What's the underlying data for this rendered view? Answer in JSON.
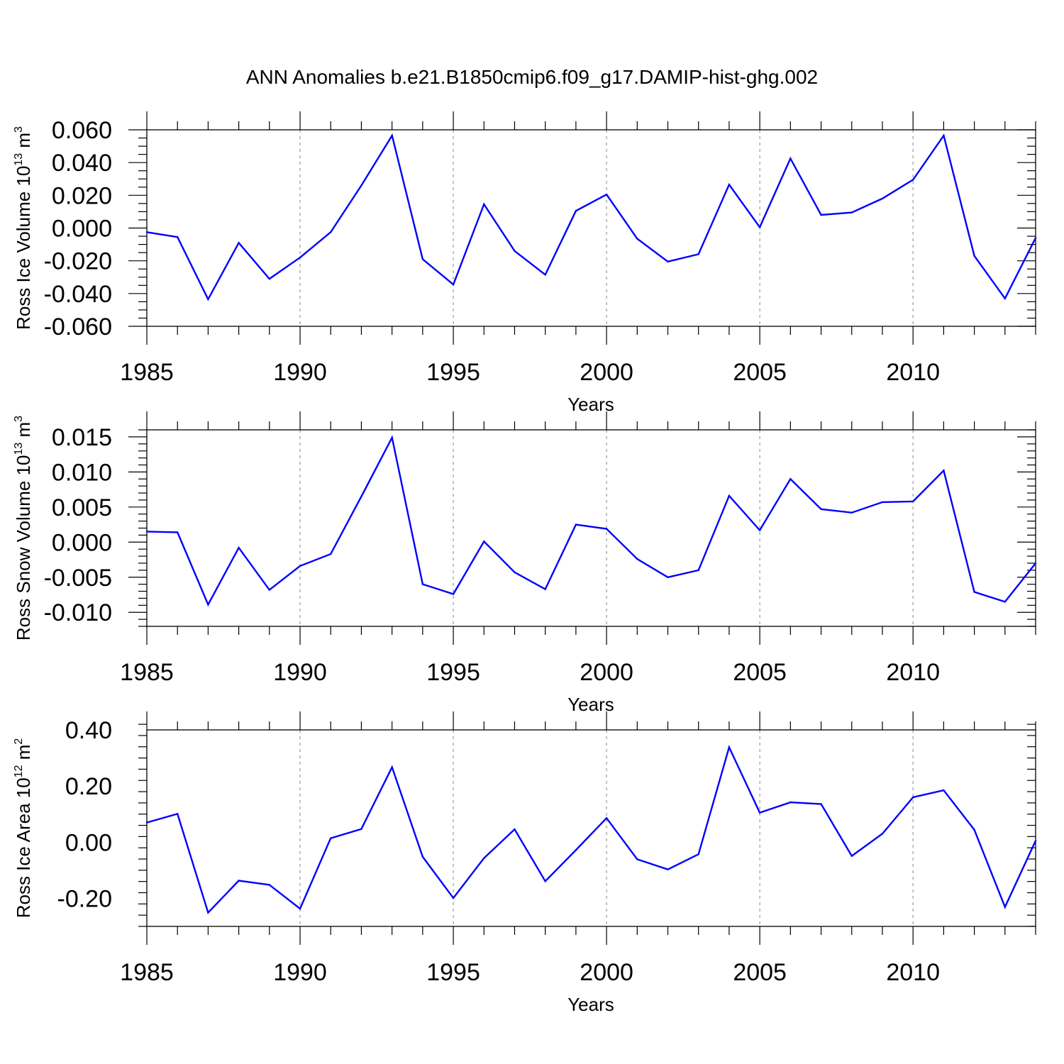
{
  "title": "ANN Anomalies b.e21.B1850cmip6.f09_g17.DAMIP-hist-ghg.002",
  "colors": {
    "line": "#0000ff",
    "axis": "#000000",
    "grid": "#999999"
  },
  "chart_data": [
    {
      "type": "line",
      "ylabel": "Ross Ice Volume",
      "yunit_base": "10",
      "yunit_exp": "13",
      "yunit_suffix": "m",
      "yunit_suffix_exp": "3",
      "xlabel": "Years",
      "xlim": [
        1985,
        2014
      ],
      "ylim": [
        -0.06,
        0.06
      ],
      "xticks": [
        "1985",
        "1990",
        "1995",
        "2000",
        "2005",
        "2010"
      ],
      "yticks": [
        "0.060",
        "0.040",
        "0.020",
        "0.000",
        "-0.020",
        "-0.040",
        "-0.060"
      ],
      "grid": "dashed vertical at major x ticks",
      "x": [
        1985,
        1986,
        1987,
        1988,
        1989,
        1990,
        1991,
        1992,
        1993,
        1994,
        1995,
        1996,
        1997,
        1998,
        1999,
        2000,
        2001,
        2002,
        2003,
        2004,
        2005,
        2006,
        2007,
        2008,
        2009,
        2010,
        2011,
        2012,
        2013,
        2014
      ],
      "values": [
        -0.0025,
        -0.0055,
        -0.0435,
        -0.009,
        -0.031,
        -0.018,
        -0.0025,
        0.026,
        0.0565,
        -0.019,
        -0.0345,
        0.0145,
        -0.014,
        -0.0285,
        0.0105,
        0.0205,
        -0.0065,
        -0.0205,
        -0.016,
        0.0265,
        0.0005,
        0.0425,
        0.008,
        0.0095,
        0.018,
        0.0295,
        0.0565,
        -0.017,
        -0.043,
        -0.006
      ]
    },
    {
      "type": "line",
      "ylabel": "Ross Snow Volume",
      "yunit_base": "10",
      "yunit_exp": "13",
      "yunit_suffix": "m",
      "yunit_suffix_exp": "3",
      "xlabel": "Years",
      "xlim": [
        1985,
        2014
      ],
      "ylim": [
        -0.012,
        0.016
      ],
      "xticks": [
        "1985",
        "1990",
        "1995",
        "2000",
        "2005",
        "2010"
      ],
      "yticks": [
        "0.015",
        "0.010",
        "0.005",
        "0.000",
        "-0.005",
        "-0.010"
      ],
      "grid": "dashed vertical at major x ticks",
      "x": [
        1985,
        1986,
        1987,
        1988,
        1989,
        1990,
        1991,
        1992,
        1993,
        1994,
        1995,
        1996,
        1997,
        1998,
        1999,
        2000,
        2001,
        2002,
        2003,
        2004,
        2005,
        2006,
        2007,
        2008,
        2009,
        2010,
        2011,
        2012,
        2013,
        2014
      ],
      "values": [
        0.0015,
        0.0014,
        -0.0089,
        -0.0008,
        -0.0068,
        -0.0034,
        -0.0017,
        0.0065,
        0.0149,
        -0.006,
        -0.0074,
        0.0001,
        -0.0043,
        -0.0067,
        0.0025,
        0.0019,
        -0.0024,
        -0.005,
        -0.004,
        0.0066,
        0.0017,
        0.009,
        0.0047,
        0.0042,
        0.0057,
        0.0058,
        0.0102,
        -0.0071,
        -0.0085,
        -0.003
      ]
    },
    {
      "type": "line",
      "ylabel": "Ross Ice Area",
      "yunit_base": "10",
      "yunit_exp": "12",
      "yunit_suffix": "m",
      "yunit_suffix_exp": "2",
      "xlabel": "Years",
      "xlim": [
        1985,
        2014
      ],
      "ylim": [
        -0.3,
        0.4
      ],
      "xticks": [
        "1985",
        "1990",
        "1995",
        "2000",
        "2005",
        "2010"
      ],
      "yticks": [
        "0.40",
        "0.20",
        "0.00",
        "-0.20"
      ],
      "grid": "dashed vertical at major x ticks",
      "x": [
        1985,
        1986,
        1987,
        1988,
        1989,
        1990,
        1991,
        1992,
        1993,
        1994,
        1995,
        1996,
        1997,
        1998,
        1999,
        2000,
        2001,
        2002,
        2003,
        2004,
        2005,
        2006,
        2007,
        2008,
        2009,
        2010,
        2011,
        2012,
        2013,
        2014
      ],
      "values": [
        0.07,
        0.101,
        -0.251,
        -0.137,
        -0.152,
        -0.237,
        0.014,
        0.047,
        0.267,
        -0.052,
        -0.199,
        -0.057,
        0.046,
        -0.139,
        -0.028,
        0.086,
        -0.061,
        -0.097,
        -0.043,
        0.338,
        0.105,
        0.142,
        0.136,
        -0.049,
        0.03,
        0.16,
        0.185,
        0.044,
        -0.231,
        0.005
      ]
    }
  ]
}
